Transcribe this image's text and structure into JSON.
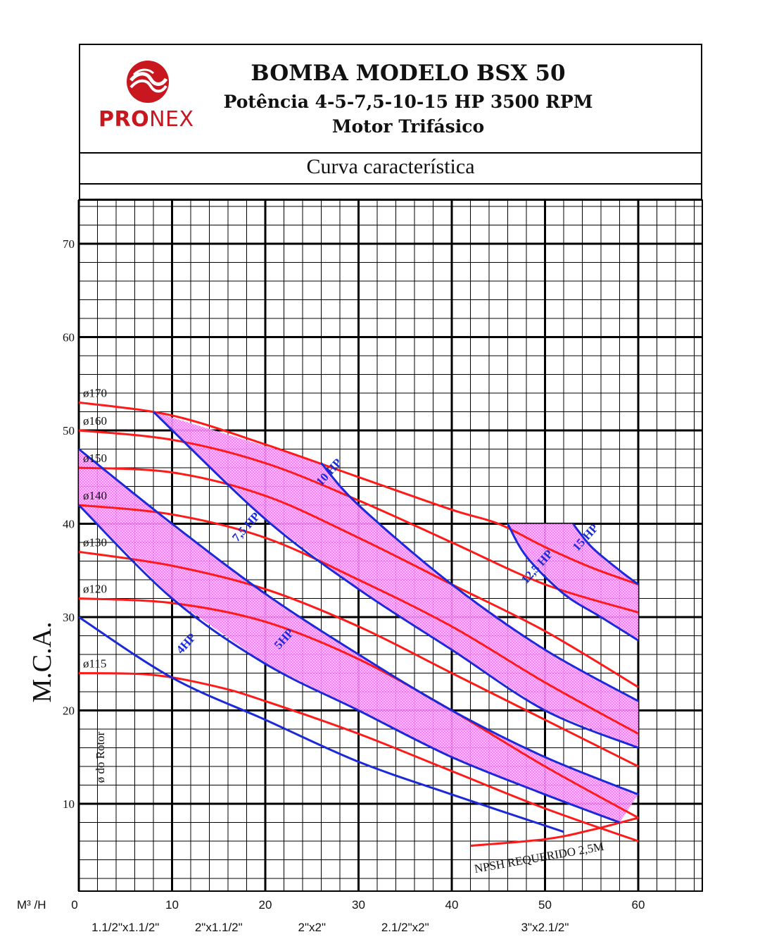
{
  "header": {
    "title": "BOMBA MODELO BSX 50",
    "line2": "Potência 4-5-7,5-10-15 HP 3500 RPM",
    "line3": "Motor Trifásico",
    "logo_text_bold": "PRO",
    "logo_text_light": "NEX",
    "curve_title": "Curva característica"
  },
  "colors": {
    "brand": "#c8171e",
    "rotor_curve": "#ff1a1a",
    "power_curve": "#1a2ad8",
    "fill": "#ff40ff"
  },
  "chart_data": {
    "type": "line",
    "ylabel": "M.C.A.",
    "xlabel": "M³ /H",
    "secondary_ylabel": "ø do Rotor",
    "xlim": [
      0,
      60
    ],
    "ylim": [
      0,
      75
    ],
    "x_ticks": [
      0,
      10,
      20,
      30,
      40,
      50,
      60
    ],
    "y_ticks": [
      10,
      20,
      30,
      40,
      50,
      60,
      70
    ],
    "size_labels": [
      {
        "x": 5,
        "text": "1.1/2\"x1.1/2\""
      },
      {
        "x": 15,
        "text": "2\"x1.1/2\""
      },
      {
        "x": 25,
        "text": "2\"x2\""
      },
      {
        "x": 35,
        "text": "2.1/2\"x2\""
      },
      {
        "x": 50,
        "text": "3\"x2.1/2\""
      }
    ],
    "rotor_series": [
      {
        "name": "ø170",
        "points": [
          [
            0,
            53
          ],
          [
            10,
            51.6
          ],
          [
            20,
            48.5
          ],
          [
            30,
            45
          ],
          [
            40,
            41.5
          ],
          [
            45,
            40
          ],
          [
            50,
            37.5
          ],
          [
            55,
            35.3
          ],
          [
            60,
            33.5
          ]
        ]
      },
      {
        "name": "ø160",
        "points": [
          [
            0,
            50
          ],
          [
            10,
            49
          ],
          [
            20,
            46.5
          ],
          [
            30,
            42.5
          ],
          [
            40,
            38
          ],
          [
            50,
            33.5
          ],
          [
            60,
            30.5
          ]
        ]
      },
      {
        "name": "ø150",
        "points": [
          [
            0,
            46
          ],
          [
            10,
            45.5
          ],
          [
            20,
            43
          ],
          [
            30,
            38.5
          ],
          [
            40,
            33.5
          ],
          [
            50,
            28.5
          ],
          [
            60,
            22.5
          ]
        ]
      },
      {
        "name": "ø140",
        "points": [
          [
            0,
            42
          ],
          [
            10,
            41
          ],
          [
            20,
            38.5
          ],
          [
            30,
            34
          ],
          [
            40,
            29
          ],
          [
            50,
            23
          ],
          [
            60,
            17.5
          ]
        ]
      },
      {
        "name": "ø130",
        "points": [
          [
            0,
            37
          ],
          [
            10,
            35.5
          ],
          [
            20,
            33
          ],
          [
            30,
            29
          ],
          [
            40,
            24
          ],
          [
            50,
            19
          ],
          [
            60,
            14
          ]
        ]
      },
      {
        "name": "ø120",
        "points": [
          [
            0,
            32
          ],
          [
            10,
            31.5
          ],
          [
            20,
            29.5
          ],
          [
            30,
            25.5
          ],
          [
            40,
            20
          ],
          [
            50,
            14
          ],
          [
            60,
            8.5
          ]
        ]
      },
      {
        "name": "ø115",
        "points": [
          [
            0,
            24
          ],
          [
            8,
            23.8
          ],
          [
            15,
            22.5
          ],
          [
            20,
            21
          ],
          [
            30,
            17.5
          ],
          [
            40,
            13.5
          ],
          [
            50,
            9.5
          ],
          [
            60,
            6
          ]
        ]
      },
      {
        "name": "NPSH REQUERIDO 2,5M",
        "points": [
          [
            42,
            5.5
          ],
          [
            50,
            6.2
          ],
          [
            55,
            7.2
          ],
          [
            60,
            8.5
          ]
        ]
      }
    ],
    "power_series": [
      {
        "name": "4HP",
        "points": [
          [
            0,
            30
          ],
          [
            10,
            23.5
          ],
          [
            20,
            19
          ],
          [
            30,
            14.5
          ],
          [
            40,
            11
          ],
          [
            52,
            7
          ]
        ]
      },
      {
        "name": "5HP",
        "points": [
          [
            0,
            42
          ],
          [
            10,
            32
          ],
          [
            20,
            25
          ],
          [
            30,
            20
          ],
          [
            40,
            15
          ],
          [
            50,
            11
          ],
          [
            58,
            8
          ]
        ]
      },
      {
        "name": "7,5 HP",
        "points": [
          [
            0,
            48
          ],
          [
            10,
            40
          ],
          [
            20,
            32.5
          ],
          [
            30,
            26
          ],
          [
            40,
            20
          ],
          [
            50,
            15
          ],
          [
            60,
            11
          ]
        ]
      },
      {
        "name": "10 HP",
        "points": [
          [
            8,
            52
          ],
          [
            20,
            40.5
          ],
          [
            30,
            33
          ],
          [
            40,
            26.5
          ],
          [
            50,
            20
          ],
          [
            60,
            16
          ]
        ]
      },
      {
        "name": "",
        "points": [
          [
            26,
            46.5
          ],
          [
            30,
            42
          ],
          [
            40,
            33.5
          ],
          [
            50,
            26.5
          ],
          [
            60,
            21
          ]
        ]
      },
      {
        "name": "12,5 HP",
        "points": [
          [
            46,
            40
          ],
          [
            48,
            36.5
          ],
          [
            52,
            32.5
          ],
          [
            56,
            30
          ],
          [
            60,
            27.5
          ]
        ]
      },
      {
        "name": "15 HP",
        "points": [
          [
            53,
            40
          ],
          [
            55,
            37.5
          ],
          [
            58,
            35
          ],
          [
            60,
            33.5
          ]
        ]
      }
    ],
    "hp_labels": [
      {
        "text": "4HP",
        "x": 11,
        "y": 26
      },
      {
        "text": "5HP",
        "x": 21.5,
        "y": 26.5
      },
      {
        "text": "7,5 HP",
        "x": 17,
        "y": 38
      },
      {
        "text": "10 HP",
        "x": 26,
        "y": 44
      },
      {
        "text": "12,5 HP",
        "x": 48,
        "y": 33.5
      },
      {
        "text": "15 HP",
        "x": 53.5,
        "y": 37
      }
    ],
    "grid": true
  }
}
